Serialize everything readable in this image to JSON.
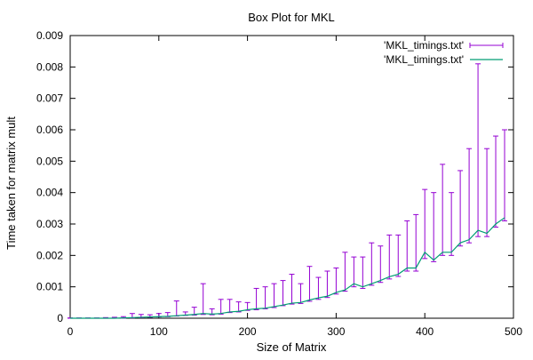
{
  "chart_data": {
    "type": "line",
    "title": "Box Plot for MKL",
    "xlabel": "Size of Matrix",
    "ylabel": "Time taken for matrix mult",
    "xlim": [
      0,
      500
    ],
    "ylim": [
      0,
      0.009
    ],
    "x_ticks": [
      0,
      100,
      200,
      300,
      400,
      500
    ],
    "y_ticks": [
      0,
      0.001,
      0.002,
      0.003,
      0.004,
      0.005,
      0.006,
      0.007,
      0.008,
      0.009
    ],
    "x_tick_labels": [
      "0",
      "100",
      "200",
      "300",
      "400",
      "500"
    ],
    "y_tick_labels": [
      "0",
      "0.001",
      "0.002",
      "0.003",
      "0.004",
      "0.005",
      "0.006",
      "0.007",
      "0.008",
      "0.009"
    ],
    "grid": false,
    "legend_position": "top-right",
    "x": [
      0,
      10,
      20,
      30,
      40,
      50,
      60,
      70,
      80,
      90,
      100,
      110,
      120,
      130,
      140,
      150,
      160,
      170,
      180,
      190,
      200,
      210,
      220,
      230,
      240,
      250,
      260,
      270,
      280,
      290,
      300,
      310,
      320,
      330,
      340,
      350,
      360,
      370,
      380,
      390,
      400,
      410,
      420,
      430,
      440,
      450,
      460,
      470,
      480,
      490
    ],
    "series": [
      {
        "name": "'MKL_timings.txt'",
        "style": "errorbars",
        "color": "#9400d3",
        "values": [
          0,
          0,
          0,
          0,
          0,
          0,
          1e-05,
          2e-05,
          3e-05,
          4e-05,
          5e-05,
          6e-05,
          8e-05,
          0.0001,
          0.00012,
          0.00015,
          0.00013,
          0.00015,
          0.0002,
          0.00022,
          0.00027,
          0.0003,
          0.00032,
          0.00037,
          0.00042,
          0.00048,
          0.0005,
          0.00058,
          0.00065,
          0.0007,
          0.00082,
          0.0009,
          0.0011,
          0.001,
          0.0011,
          0.0012,
          0.00132,
          0.0014,
          0.0016,
          0.0016,
          0.0021,
          0.00185,
          0.0021,
          0.0021,
          0.0024,
          0.0025,
          0.0028,
          0.0027,
          0.003,
          0.0032
        ],
        "low": [
          0,
          0,
          0,
          0,
          0,
          0,
          0,
          1e-05,
          2e-05,
          3e-05,
          4e-05,
          5e-05,
          7e-05,
          9e-05,
          0.0001,
          0.00012,
          0.00011,
          0.00013,
          0.00018,
          0.0002,
          0.00025,
          0.00027,
          0.0003,
          0.00034,
          0.0004,
          0.00045,
          0.00047,
          0.00054,
          0.0006,
          0.00066,
          0.00077,
          0.00086,
          0.001,
          0.00095,
          0.00105,
          0.00114,
          0.00125,
          0.00133,
          0.0015,
          0.0015,
          0.0019,
          0.0018,
          0.002,
          0.002,
          0.0023,
          0.0024,
          0.0026,
          0.0026,
          0.0029,
          0.0031
        ],
        "high": [
          1e-05,
          1e-05,
          1e-05,
          1e-05,
          2e-05,
          3e-05,
          5e-05,
          0.00015,
          0.00012,
          0.00011,
          0.00015,
          0.00018,
          0.00055,
          0.0002,
          0.00035,
          0.0011,
          0.0003,
          0.0006,
          0.0006,
          0.00052,
          0.0005,
          0.00095,
          0.001,
          0.0011,
          0.0012,
          0.0014,
          0.0011,
          0.00165,
          0.0013,
          0.0015,
          0.0016,
          0.0021,
          0.00195,
          0.00195,
          0.0024,
          0.0023,
          0.00265,
          0.00265,
          0.0031,
          0.0033,
          0.0041,
          0.004,
          0.0049,
          0.004,
          0.0047,
          0.0054,
          0.0081,
          0.0054,
          0.0058,
          0.006
        ]
      },
      {
        "name": "'MKL_timings.txt'",
        "style": "line",
        "color": "#009e73",
        "values": [
          0,
          0,
          0,
          0,
          0,
          0,
          1e-05,
          2e-05,
          3e-05,
          4e-05,
          5e-05,
          6e-05,
          8e-05,
          0.0001,
          0.00012,
          0.00015,
          0.00013,
          0.00015,
          0.0002,
          0.00022,
          0.00027,
          0.0003,
          0.00032,
          0.00037,
          0.00042,
          0.00048,
          0.0005,
          0.00058,
          0.00065,
          0.0007,
          0.00082,
          0.0009,
          0.0011,
          0.001,
          0.0011,
          0.0012,
          0.00132,
          0.0014,
          0.0016,
          0.0016,
          0.0021,
          0.00185,
          0.0021,
          0.0021,
          0.0024,
          0.0025,
          0.0028,
          0.0027,
          0.003,
          0.0032
        ]
      }
    ]
  }
}
